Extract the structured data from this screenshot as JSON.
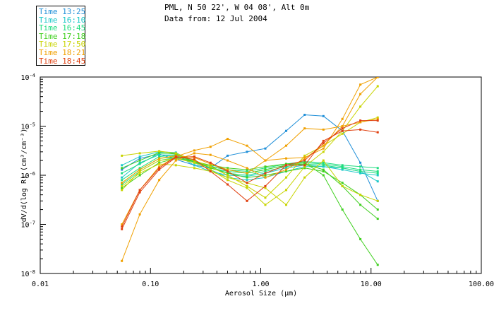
{
  "chart_data": {
    "type": "line",
    "header": {
      "line1": "PML, N 50 22', W 04 08', Alt 0m",
      "line2": "Data from: 12 Jul 2004"
    },
    "xlabel": "Aerosol Size (μm)",
    "ylabel": "dV/d(log R) (cm³/cm⁻³)",
    "xscale": "log",
    "yscale": "log",
    "xlim": [
      0.01,
      100
    ],
    "ylim": [
      1e-08,
      0.0001
    ],
    "x_ticks": [
      "0.01",
      "0.10",
      "1.00",
      "10.00",
      "100.00"
    ],
    "y_ticks": [
      {
        "base": "10",
        "exp": "-8"
      },
      {
        "base": "10",
        "exp": "-7"
      },
      {
        "base": "10",
        "exp": "-6"
      },
      {
        "base": "10",
        "exp": "-5"
      },
      {
        "base": "10",
        "exp": "-4"
      }
    ],
    "x": [
      0.055,
      0.08,
      0.12,
      0.17,
      0.25,
      0.35,
      0.5,
      0.75,
      1.1,
      1.7,
      2.5,
      3.7,
      5.5,
      8,
      11.5
    ],
    "legend": [
      {
        "label": "Time 13:25",
        "color": "#1f8fd8"
      },
      {
        "label": "Time 16:10",
        "color": "#1cc8c8"
      },
      {
        "label": "Time 16:45",
        "color": "#20dd80"
      },
      {
        "label": "Time 17:18",
        "color": "#40d020"
      },
      {
        "label": "Time 17:50",
        "color": "#c8d400"
      },
      {
        "label": "Time 18:21",
        "color": "#f0a000"
      },
      {
        "label": "Time 18:45",
        "color": "#e04010"
      }
    ],
    "series": [
      {
        "name": "13:25",
        "color": "#1f8fd8",
        "values": [
          1.3e-06,
          2.2e-06,
          2.7e-06,
          2.1e-06,
          1.6e-06,
          1.4e-06,
          2.5e-06,
          3e-06,
          3.5e-06,
          8e-06,
          1.7e-05,
          1.6e-05,
          8e-06,
          1.8e-06,
          3e-07
        ]
      },
      {
        "name": "16:10a",
        "color": "#1cc8c8",
        "values": [
          1.6e-06,
          2.4e-06,
          3e-06,
          2.9e-06,
          1.8e-06,
          1.3e-06,
          9e-07,
          8e-07,
          9e-07,
          1.2e-06,
          1.5e-06,
          1.5e-06,
          1.4e-06,
          1.2e-06,
          7.5e-07
        ]
      },
      {
        "name": "16:10b",
        "color": "#1cc8c8",
        "values": [
          9e-07,
          1.8e-06,
          2.6e-06,
          2.6e-06,
          1.6e-06,
          1.2e-06,
          1e-06,
          9.5e-07,
          1.1e-06,
          1.4e-06,
          1.6e-06,
          1.5e-06,
          1.3e-06,
          1.1e-06,
          1e-06
        ]
      },
      {
        "name": "16:45a",
        "color": "#20dd80",
        "values": [
          8e-07,
          1.4e-06,
          2.4e-06,
          2.6e-06,
          1.9e-06,
          1.4e-06,
          1.2e-06,
          1.1e-06,
          1.3e-06,
          1.6e-06,
          1.8e-06,
          1.7e-06,
          1.5e-06,
          1.3e-06,
          1.2e-06
        ]
      },
      {
        "name": "16:45b",
        "color": "#20dd80",
        "values": [
          6.5e-07,
          1.2e-06,
          2e-06,
          2.3e-06,
          1.8e-06,
          1.5e-06,
          1.3e-06,
          1.2e-06,
          1.4e-06,
          1.7e-06,
          1.9e-06,
          1.8e-06,
          1.6e-06,
          1.5e-06,
          1.4e-06
        ]
      },
      {
        "name": "16:45c",
        "color": "#20dd80",
        "values": [
          1.1e-06,
          1.7e-06,
          2.8e-06,
          2.8e-06,
          2e-06,
          1.5e-06,
          1.1e-06,
          1e-06,
          1.2e-06,
          1.5e-06,
          1.7e-06,
          1.6e-06,
          1.4e-06,
          1.2e-06,
          1.1e-06
        ]
      },
      {
        "name": "17:18a",
        "color": "#40d020",
        "values": [
          5.5e-07,
          1e-06,
          1.8e-06,
          2.2e-06,
          1.9e-06,
          1.6e-06,
          1.4e-06,
          1.3e-06,
          1.5e-06,
          1.7e-06,
          1.8e-06,
          1e-06,
          2e-07,
          5e-08,
          1.5e-08
        ]
      },
      {
        "name": "17:18b",
        "color": "#40d020",
        "values": [
          7e-07,
          1.3e-06,
          2.2e-06,
          2.4e-06,
          1.9e-06,
          1.5e-06,
          1.3e-06,
          1.1e-06,
          1.3e-06,
          1.6e-06,
          1.7e-06,
          1.3e-06,
          6e-07,
          2.5e-07,
          1.3e-07
        ]
      },
      {
        "name": "17:18c",
        "color": "#40d020",
        "values": [
          1.4e-06,
          2e-06,
          2.9e-06,
          2.7e-06,
          1.9e-06,
          1.4e-06,
          1.1e-06,
          9e-07,
          1e-06,
          1.2e-06,
          1.4e-06,
          1.2e-06,
          7e-07,
          4e-07,
          2e-07
        ]
      },
      {
        "name": "17:50a",
        "color": "#c8d400",
        "values": [
          2.5e-06,
          2.8e-06,
          3.1e-06,
          2.8e-06,
          2e-06,
          1.5e-06,
          1e-06,
          6e-07,
          3.5e-07,
          9e-07,
          2.5e-06,
          4e-06,
          7e-06,
          1.2e-05,
          1.5e-05
        ]
      },
      {
        "name": "17:50b",
        "color": "#c8d400",
        "values": [
          5e-07,
          1.2e-06,
          2e-06,
          2.2e-06,
          1.8e-06,
          1.3e-06,
          8e-07,
          5.5e-07,
          2.5e-07,
          5e-07,
          1.5e-06,
          3e-06,
          8e-06,
          2.5e-05,
          6.5e-05
        ]
      },
      {
        "name": "17:50c",
        "color": "#c8d400",
        "values": [
          6e-07,
          1.1e-06,
          1.7e-06,
          1.6e-06,
          1.4e-06,
          1.2e-06,
          9e-07,
          7e-07,
          5.5e-07,
          2.5e-07,
          9e-07,
          2e-06,
          6e-07,
          4e-07,
          3e-07
        ]
      },
      {
        "name": "18:21a",
        "color": "#f0a000",
        "values": [
          1.8e-08,
          1.6e-07,
          8e-07,
          2e-06,
          2.8e-06,
          2.6e-06,
          2e-06,
          1.4e-06,
          9e-07,
          1.3e-06,
          2.2e-06,
          4e-06,
          1e-05,
          4.5e-05,
          0.0001
        ]
      },
      {
        "name": "18:21b",
        "color": "#f0a000",
        "values": [
          1e-07,
          5e-07,
          1.5e-06,
          2.4e-06,
          3.2e-06,
          3.8e-06,
          5.5e-06,
          4e-06,
          2e-06,
          4e-06,
          9e-06,
          8.5e-06,
          1e-05,
          1.2e-05,
          1.4e-05
        ]
      },
      {
        "name": "18:21c",
        "color": "#f0a000",
        "values": [
          7e-07,
          1.3e-06,
          2.2e-06,
          2.5e-06,
          2.3e-06,
          1.7e-06,
          1.3e-06,
          1.1e-06,
          2e-06,
          2.2e-06,
          2.3e-06,
          3.5e-06,
          1.4e-05,
          7e-05,
          0.0001
        ]
      },
      {
        "name": "18:45a",
        "color": "#e04010",
        "values": [
          8e-08,
          4.5e-07,
          1.3e-06,
          2.3e-06,
          2.4e-06,
          1.8e-06,
          1.2e-06,
          7e-07,
          1.1e-06,
          1.6e-06,
          2e-06,
          4.5e-06,
          9e-06,
          1.3e-05,
          1.3e-05
        ]
      },
      {
        "name": "18:45b",
        "color": "#e04010",
        "values": [
          9e-08,
          5e-07,
          1.4e-06,
          2.4e-06,
          2.1e-06,
          1.2e-06,
          6.5e-07,
          3e-07,
          6e-07,
          1.6e-06,
          1.6e-06,
          5e-06,
          8e-06,
          8.5e-06,
          7.5e-06
        ]
      }
    ]
  }
}
